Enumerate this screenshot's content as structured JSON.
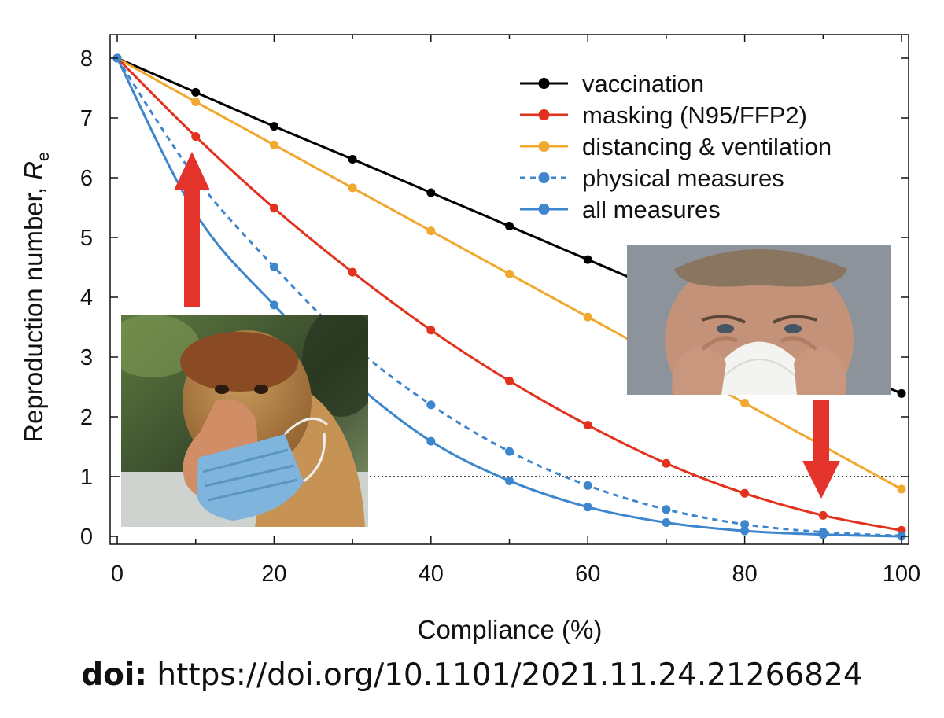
{
  "chart_data": {
    "type": "line",
    "xlabel": "Compliance (%)",
    "ylabel": "Reproduction number, ",
    "ylabel_symbol": "R",
    "ylabel_subscript": "e",
    "x": [
      0,
      10,
      20,
      30,
      40,
      50,
      60,
      70,
      80,
      90,
      100
    ],
    "xlim": [
      0,
      100
    ],
    "ylim": [
      0,
      8
    ],
    "xticks": [
      0,
      20,
      40,
      60,
      80,
      100
    ],
    "yticks": [
      0,
      1,
      2,
      3,
      4,
      5,
      6,
      7,
      8
    ],
    "legend_position": "top-right",
    "reference_line": {
      "y": 1,
      "style": "dotted"
    },
    "series": [
      {
        "name": "vaccination",
        "color": "#000000",
        "dash": false,
        "values": [
          8.0,
          7.43,
          6.86,
          6.31,
          5.75,
          5.19,
          4.63,
          4.07,
          3.51,
          2.95,
          2.39
        ]
      },
      {
        "name": "masking (N95/FFP2)",
        "color": "#e2321e",
        "dash": false,
        "values": [
          8.0,
          6.69,
          5.49,
          4.42,
          3.45,
          2.6,
          1.86,
          1.22,
          0.72,
          0.35,
          0.1
        ]
      },
      {
        "name": "distancing & ventilation",
        "color": "#f0a82e",
        "dash": false,
        "values": [
          8.0,
          7.27,
          6.55,
          5.83,
          5.11,
          4.39,
          3.67,
          2.95,
          2.23,
          1.51,
          0.79
        ]
      },
      {
        "name": "physical measures",
        "color": "#3d85cc",
        "dash": true,
        "values": [
          8.0,
          6.0,
          4.51,
          3.2,
          2.2,
          1.42,
          0.85,
          0.45,
          0.2,
          0.07,
          0.01
        ]
      },
      {
        "name": "all measures",
        "color": "#3d85cc",
        "dash": false,
        "values": [
          8.0,
          5.4,
          3.87,
          2.6,
          1.59,
          0.93,
          0.49,
          0.23,
          0.09,
          0.03,
          0.0
        ]
      }
    ],
    "annotations": [
      {
        "type": "arrow",
        "direction": "up",
        "color": "#e4332a",
        "points_to_series": "masking (N95/FFP2)",
        "x": 10
      },
      {
        "type": "arrow",
        "direction": "down",
        "color": "#e4332a",
        "points_to_series": "masking (N95/FFP2)",
        "x": 90
      }
    ]
  },
  "images": {
    "left_photo": "proboscis monkey wearing a blue surgical mask below its nose",
    "right_photo": "man holding a white N95 respirator away from his face"
  },
  "footer": {
    "doi_label": "doi:",
    "doi_url": "https://doi.org/10.1101/2021.11.24.21266824"
  }
}
